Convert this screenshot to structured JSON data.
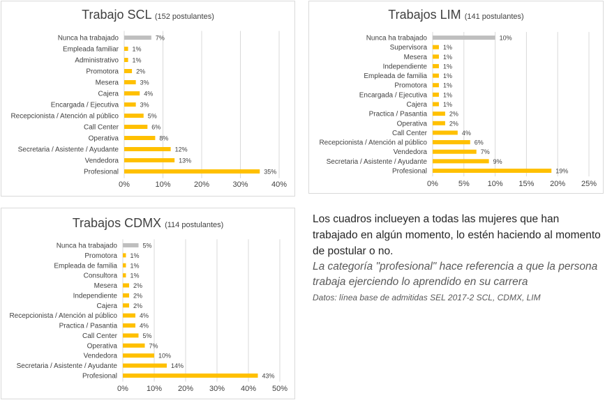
{
  "colors": {
    "bar": "#FFC000",
    "bar_first": "#BFBFBF",
    "grid": "#d9d9d9",
    "text": "#404040"
  },
  "charts": [
    {
      "id": "scl",
      "title": "Trabajo SCL",
      "subtitle": "(152 postulantes)"
    },
    {
      "id": "lim",
      "title": "Trabajos LIM",
      "subtitle": "(141 postulantes)"
    },
    {
      "id": "cdmx",
      "title": "Trabajos CDMX",
      "subtitle": "(114 postulantes)"
    }
  ],
  "chart_data": [
    {
      "type": "bar",
      "orientation": "horizontal",
      "title": "Trabajo SCL (152 postulantes)",
      "categories": [
        "Nunca ha trabajado",
        "Empleada familiar",
        "Administrativo",
        "Promotora",
        "Mesera",
        "Cajera",
        "Encargada / Ejecutiva",
        "Recepcionista / Atención al público",
        "Call Center",
        "Operativa",
        "Secretaria / Asistente / Ayudante",
        "Vendedora",
        "Profesional"
      ],
      "values": [
        7,
        1,
        1,
        2,
        3,
        4,
        3,
        5,
        6,
        8,
        12,
        13,
        35
      ],
      "labels": [
        "7%",
        "1%",
        "1%",
        "2%",
        "3%",
        "4%",
        "3%",
        "5%",
        "6%",
        "8%",
        "12%",
        "13%",
        "35%"
      ],
      "xlim": [
        0,
        40
      ],
      "ticks": [
        "0%",
        "10%",
        "20%",
        "30%",
        "40%"
      ],
      "grid": true
    },
    {
      "type": "bar",
      "orientation": "horizontal",
      "title": "Trabajos LIM (141 postulantes)",
      "categories": [
        "Nunca ha trabajado",
        "Supervisora",
        "Mesera",
        "Independiente",
        "Empleada de familia",
        "Promotora",
        "Encargada / Ejecutiva",
        "Cajera",
        "Practica / Pasantia",
        "Operativa",
        "Call Center",
        "Recepcionista / Atención al público",
        "Vendedora",
        "Secretaria / Asistente / Ayudante",
        "Profesional"
      ],
      "values": [
        10,
        1,
        1,
        1,
        1,
        1,
        1,
        1,
        2,
        2,
        4,
        6,
        7,
        9,
        19
      ],
      "labels": [
        "10%",
        "1%",
        "1%",
        "1%",
        "1%",
        "1%",
        "1%",
        "1%",
        "2%",
        "2%",
        "4%",
        "6%",
        "7%",
        "9%",
        "19%"
      ],
      "xlim": [
        0,
        25
      ],
      "ticks": [
        "0%",
        "5%",
        "10%",
        "15%",
        "20%",
        "25%"
      ],
      "grid": true
    },
    {
      "type": "bar",
      "orientation": "horizontal",
      "title": "Trabajos CDMX (114 postulantes)",
      "categories": [
        "Nunca ha trabajado",
        "Promotora",
        "Empleada de familia",
        "Consultora",
        "Mesera",
        "Independiente",
        "Cajera",
        "Recepcionista / Atención al público",
        "Practica / Pasantia",
        "Call Center",
        "Operativa",
        "Vendedora",
        "Secretaria / Asistente / Ayudante",
        "Profesional"
      ],
      "values": [
        5,
        1,
        1,
        1,
        2,
        2,
        2,
        4,
        4,
        5,
        7,
        10,
        14,
        43
      ],
      "labels": [
        "5%",
        "1%",
        "1%",
        "1%",
        "2%",
        "2%",
        "2%",
        "4%",
        "4%",
        "5%",
        "7%",
        "10%",
        "14%",
        "43%"
      ],
      "xlim": [
        0,
        50
      ],
      "ticks": [
        "0%",
        "10%",
        "20%",
        "30%",
        "40%",
        "50%"
      ],
      "grid": true
    }
  ],
  "notes": {
    "main": "Los cuadros inclueyen a todas las mujeres que han trabajado en algún momento, lo estén haciendo al momento de postular o no.",
    "italic": "La categoría \"profesional\" hace referencia a que la persona trabaja ejerciendo lo aprendido en su carrera",
    "source": "Datos: línea base de admitidas SEL 2017-2 SCL, CDMX, LIM"
  }
}
